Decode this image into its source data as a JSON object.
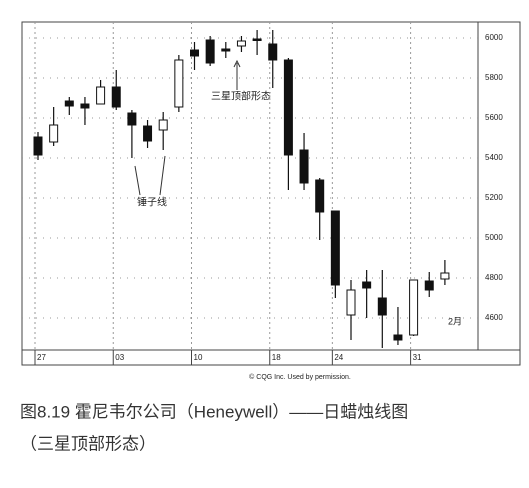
{
  "chart_data": {
    "type": "candlestick",
    "categories": [
      "27",
      null,
      null,
      null,
      null,
      "03",
      null,
      null,
      null,
      null,
      "10",
      null,
      null,
      null,
      null,
      "18",
      null,
      null,
      null,
      "24",
      null,
      null,
      null,
      null,
      "31",
      null,
      null
    ],
    "open": [
      5505,
      5480,
      5685,
      5670,
      5670,
      5755,
      5625,
      5560,
      5540,
      5655,
      5940,
      5990,
      5945,
      5960,
      5995,
      5970,
      5890,
      5440,
      5290,
      5135,
      4615,
      4780,
      4700,
      4515,
      4515,
      4785,
      4795
    ],
    "high": [
      5530,
      5655,
      5705,
      5705,
      5790,
      5840,
      5640,
      5590,
      5630,
      5915,
      5980,
      6010,
      5980,
      6010,
      6040,
      6040,
      5900,
      5525,
      5300,
      5135,
      4790,
      4840,
      4840,
      4655,
      4790,
      4830,
      4890
    ],
    "low": [
      5390,
      5460,
      5615,
      5565,
      5670,
      5640,
      5400,
      5450,
      5440,
      5630,
      5840,
      5860,
      5900,
      5930,
      5915,
      5750,
      5240,
      5240,
      4990,
      4700,
      4490,
      4600,
      4450,
      4465,
      4510,
      4705,
      4765
    ],
    "close": [
      5415,
      5565,
      5660,
      5650,
      5755,
      5655,
      5565,
      5485,
      5590,
      5890,
      5910,
      5875,
      5935,
      5985,
      5990,
      5890,
      5415,
      5275,
      5130,
      4765,
      4740,
      4750,
      4615,
      4490,
      4790,
      4740,
      4825
    ],
    "ylim": [
      4440,
      6080
    ],
    "yticks": [
      4600,
      4800,
      5000,
      5200,
      5400,
      5600,
      5800,
      6000
    ],
    "annotations": [
      {
        "text": "三星顶部形态"
      },
      {
        "text": "锤子线"
      },
      {
        "text": "2月"
      }
    ],
    "source": "© CQG Inc. Used by permission.",
    "caption": [
      "图8.19 霍尼韦尔公司（Heneywell）——日蜡烛线图",
      "（三星顶部形态）"
    ],
    "up_color": "#ffffff",
    "down_color": "#111111"
  }
}
